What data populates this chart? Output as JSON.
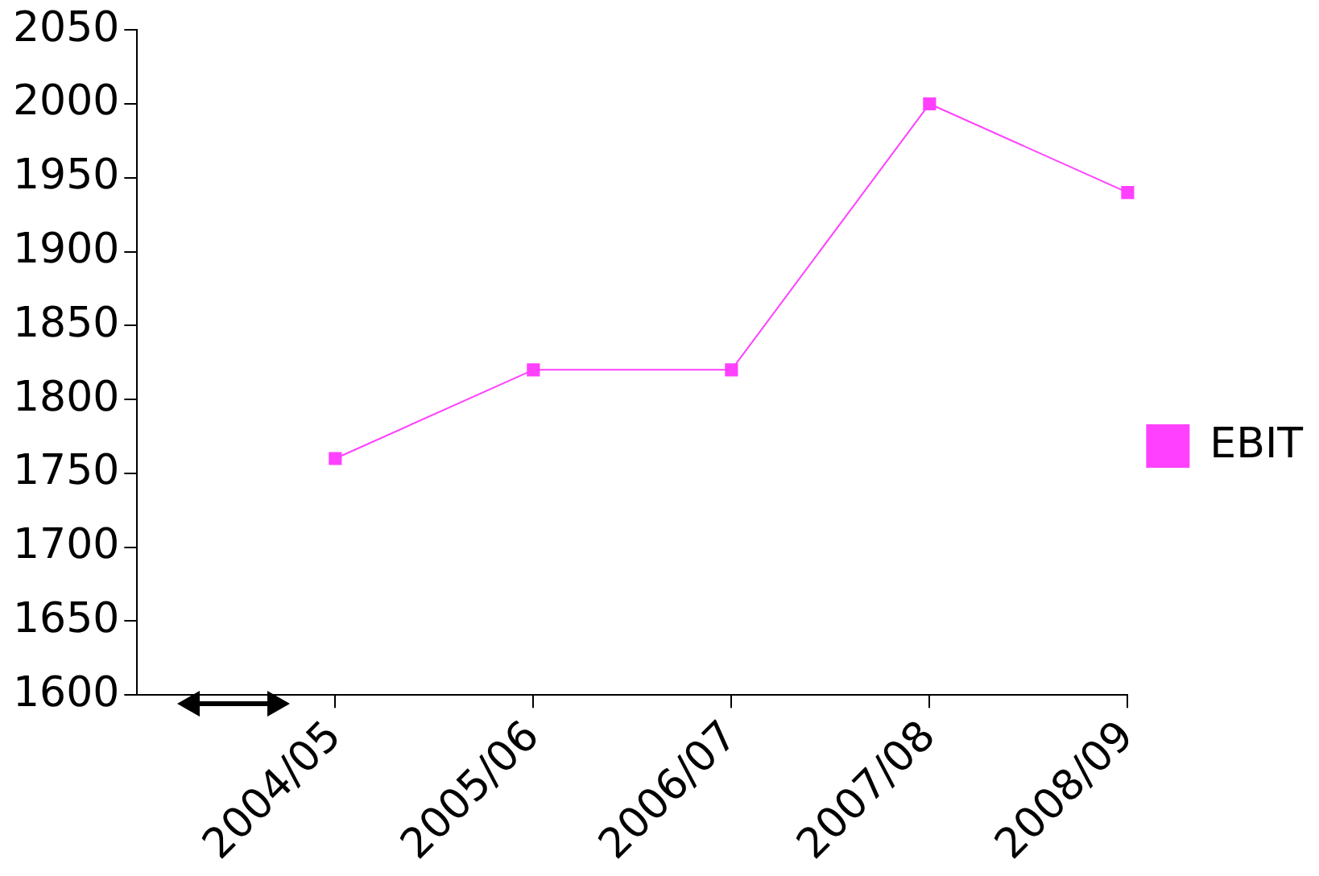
{
  "chart_data": {
    "type": "line",
    "categories": [
      "2004/05",
      "2005/06",
      "2006/07",
      "2007/08",
      "2008/09"
    ],
    "series": [
      {
        "name": "EBIT",
        "color": "#ff40ff",
        "values": [
          1760,
          1820,
          1820,
          2000,
          1940
        ]
      }
    ],
    "ylim": [
      1600,
      2050
    ],
    "yticks": [
      1600,
      1650,
      1700,
      1750,
      1800,
      1850,
      1900,
      1950,
      2000,
      2050
    ],
    "grid": false,
    "legend": "right",
    "marker": "square",
    "line_style": "solid"
  }
}
